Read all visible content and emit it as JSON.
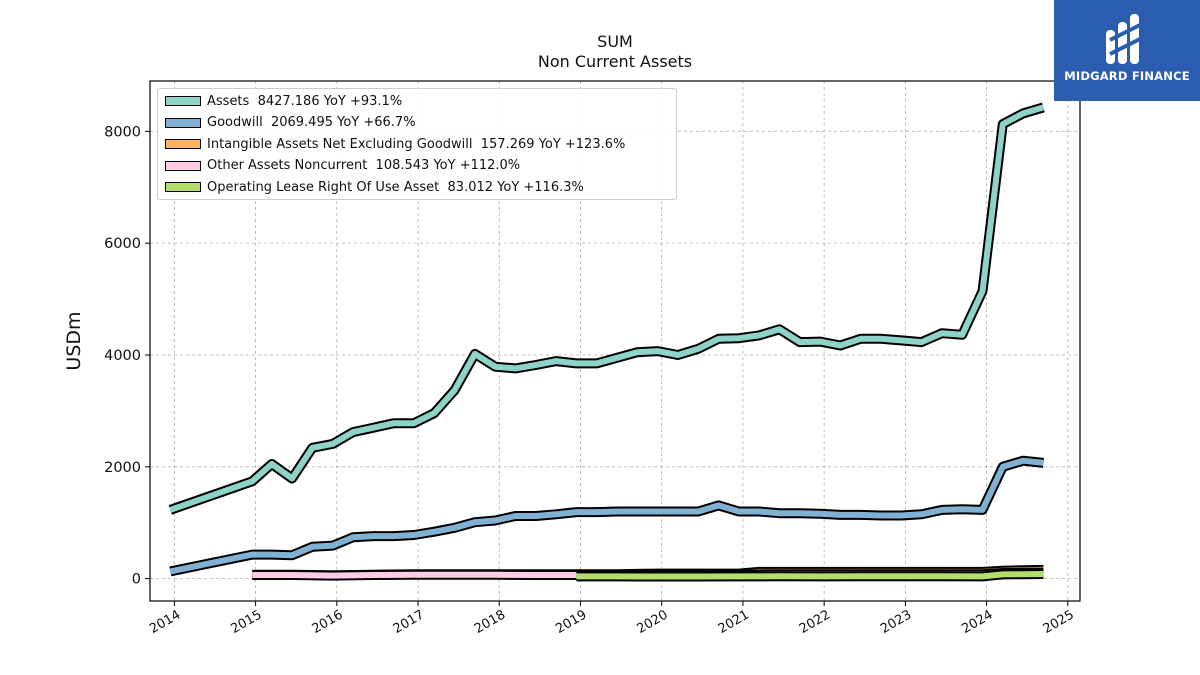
{
  "logo": {
    "brand_text": "MIDGARD FINANCE",
    "background": "#2a5db0"
  },
  "chart_data": {
    "type": "area",
    "title": "SUM",
    "subtitle": "Non Current  Assets",
    "ylabel": "USDm",
    "xlabel": "",
    "xlim": [
      2013.7,
      2025.15
    ],
    "ylim": [
      -400,
      8900
    ],
    "xticks": [
      "2014",
      "2015",
      "2016",
      "2017",
      "2018",
      "2019",
      "2020",
      "2021",
      "2022",
      "2023",
      "2024",
      "2025"
    ],
    "yticks": [
      "0",
      "2000",
      "4000",
      "6000",
      "8000"
    ],
    "grid": true,
    "legend_position": "top-left",
    "series": [
      {
        "name": "Assets  8427.186 YoY +93.1%",
        "color": "#8dd3c7",
        "points": [
          [
            2013.95,
            1230
          ],
          [
            2014.96,
            1740
          ],
          [
            2015.2,
            2050
          ],
          [
            2015.45,
            1790
          ],
          [
            2015.7,
            2340
          ],
          [
            2015.95,
            2410
          ],
          [
            2016.2,
            2620
          ],
          [
            2016.45,
            2700
          ],
          [
            2016.7,
            2780
          ],
          [
            2016.95,
            2780
          ],
          [
            2017.2,
            2960
          ],
          [
            2017.45,
            3370
          ],
          [
            2017.7,
            4020
          ],
          [
            2017.95,
            3790
          ],
          [
            2018.2,
            3760
          ],
          [
            2018.45,
            3820
          ],
          [
            2018.7,
            3890
          ],
          [
            2018.95,
            3850
          ],
          [
            2019.2,
            3850
          ],
          [
            2019.45,
            3950
          ],
          [
            2019.7,
            4050
          ],
          [
            2019.95,
            4070
          ],
          [
            2020.2,
            4000
          ],
          [
            2020.45,
            4110
          ],
          [
            2020.7,
            4290
          ],
          [
            2020.95,
            4300
          ],
          [
            2021.2,
            4350
          ],
          [
            2021.45,
            4460
          ],
          [
            2021.7,
            4230
          ],
          [
            2021.95,
            4240
          ],
          [
            2022.2,
            4170
          ],
          [
            2022.45,
            4290
          ],
          [
            2022.7,
            4290
          ],
          [
            2022.95,
            4260
          ],
          [
            2023.2,
            4230
          ],
          [
            2023.45,
            4390
          ],
          [
            2023.7,
            4360
          ],
          [
            2023.95,
            5140
          ],
          [
            2024.2,
            8130
          ],
          [
            2024.45,
            8320
          ],
          [
            2024.7,
            8427
          ]
        ]
      },
      {
        "name": "Goodwill  2069.495 YoY +66.7%",
        "color": "#80b1d3",
        "points": [
          [
            2013.95,
            130
          ],
          [
            2014.96,
            430
          ],
          [
            2015.2,
            430
          ],
          [
            2015.45,
            420
          ],
          [
            2015.7,
            570
          ],
          [
            2015.95,
            590
          ],
          [
            2016.2,
            740
          ],
          [
            2016.45,
            760
          ],
          [
            2016.7,
            760
          ],
          [
            2016.95,
            780
          ],
          [
            2017.2,
            840
          ],
          [
            2017.45,
            910
          ],
          [
            2017.7,
            1010
          ],
          [
            2017.95,
            1040
          ],
          [
            2018.2,
            1120
          ],
          [
            2018.45,
            1120
          ],
          [
            2018.7,
            1150
          ],
          [
            2018.95,
            1190
          ],
          [
            2019.2,
            1190
          ],
          [
            2019.45,
            1200
          ],
          [
            2019.7,
            1200
          ],
          [
            2019.95,
            1200
          ],
          [
            2020.2,
            1200
          ],
          [
            2020.45,
            1200
          ],
          [
            2020.7,
            1310
          ],
          [
            2020.95,
            1200
          ],
          [
            2021.2,
            1200
          ],
          [
            2021.45,
            1170
          ],
          [
            2021.7,
            1170
          ],
          [
            2021.95,
            1160
          ],
          [
            2022.2,
            1140
          ],
          [
            2022.45,
            1140
          ],
          [
            2022.7,
            1130
          ],
          [
            2022.95,
            1130
          ],
          [
            2023.2,
            1150
          ],
          [
            2023.45,
            1230
          ],
          [
            2023.7,
            1240
          ],
          [
            2023.95,
            1230
          ],
          [
            2024.2,
            2000
          ],
          [
            2024.45,
            2110
          ],
          [
            2024.7,
            2069
          ]
        ]
      },
      {
        "name": "Intangible Assets Net Excluding Goodwill  157.269 YoY +123.6%",
        "color": "#fdb462",
        "points": [
          [
            2014.96,
            70
          ],
          [
            2015.45,
            70
          ],
          [
            2015.95,
            60
          ],
          [
            2016.45,
            70
          ],
          [
            2016.95,
            80
          ],
          [
            2017.45,
            80
          ],
          [
            2017.95,
            80
          ],
          [
            2018.45,
            80
          ],
          [
            2018.95,
            80
          ],
          [
            2019.45,
            80
          ],
          [
            2019.95,
            90
          ],
          [
            2020.45,
            90
          ],
          [
            2020.95,
            90
          ],
          [
            2021.2,
            120
          ],
          [
            2021.45,
            120
          ],
          [
            2021.95,
            120
          ],
          [
            2022.45,
            120
          ],
          [
            2022.95,
            120
          ],
          [
            2023.45,
            120
          ],
          [
            2023.95,
            120
          ],
          [
            2024.2,
            140
          ],
          [
            2024.45,
            150
          ],
          [
            2024.7,
            157
          ]
        ]
      },
      {
        "name": "Other Assets Noncurrent  108.543 YoY +112.0%",
        "color": "#fccde5",
        "points": [
          [
            2014.96,
            65
          ],
          [
            2015.45,
            65
          ],
          [
            2015.95,
            55
          ],
          [
            2016.45,
            65
          ],
          [
            2016.95,
            70
          ],
          [
            2017.45,
            70
          ],
          [
            2017.95,
            68
          ],
          [
            2018.45,
            65
          ],
          [
            2018.95,
            65
          ],
          [
            2019.45,
            60
          ],
          [
            2019.95,
            60
          ],
          [
            2020.45,
            60
          ],
          [
            2020.95,
            70
          ],
          [
            2021.45,
            80
          ],
          [
            2021.95,
            80
          ],
          [
            2022.45,
            80
          ],
          [
            2022.95,
            80
          ],
          [
            2023.45,
            80
          ],
          [
            2023.95,
            80
          ],
          [
            2024.2,
            100
          ],
          [
            2024.45,
            105
          ],
          [
            2024.7,
            108.5
          ]
        ]
      },
      {
        "name": "Operating Lease Right Of Use Asset  83.012 YoY +116.3%",
        "color": "#b3de69",
        "points": [
          [
            2018.95,
            40
          ],
          [
            2019.45,
            40
          ],
          [
            2019.95,
            38
          ],
          [
            2020.45,
            38
          ],
          [
            2020.95,
            40
          ],
          [
            2021.45,
            42
          ],
          [
            2021.95,
            40
          ],
          [
            2022.45,
            42
          ],
          [
            2022.95,
            42
          ],
          [
            2023.45,
            42
          ],
          [
            2023.95,
            40
          ],
          [
            2024.2,
            75
          ],
          [
            2024.45,
            80
          ],
          [
            2024.7,
            83
          ]
        ]
      }
    ]
  }
}
